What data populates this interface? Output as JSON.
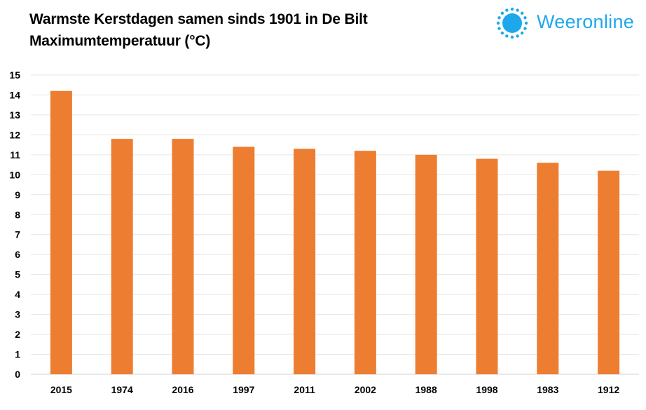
{
  "header": {
    "title_line1": "Warmste Kerstdagen samen sinds 1901 in De Bilt",
    "title_line2": "Maximumtemperatuur (°C)"
  },
  "logo": {
    "text": "Weeronline",
    "icon": "sun-icon",
    "color": "#1ea8ec"
  },
  "chart_data": {
    "type": "bar",
    "title": "Warmste Kerstdagen samen sinds 1901 in De Bilt",
    "subtitle": "Maximumtemperatuur (°C)",
    "categories": [
      "2015",
      "1974",
      "2016",
      "1997",
      "2011",
      "2002",
      "1988",
      "1998",
      "1983",
      "1912"
    ],
    "values": [
      14.2,
      11.8,
      11.8,
      11.4,
      11.3,
      11.2,
      11.0,
      10.8,
      10.6,
      10.2
    ],
    "ylim": [
      0,
      15
    ],
    "yticks": [
      0,
      1,
      2,
      3,
      4,
      5,
      6,
      7,
      8,
      9,
      10,
      11,
      12,
      13,
      14,
      15
    ],
    "grid": true,
    "bar_color": "#ed7d31",
    "grid_color": "#e6e6e6"
  }
}
